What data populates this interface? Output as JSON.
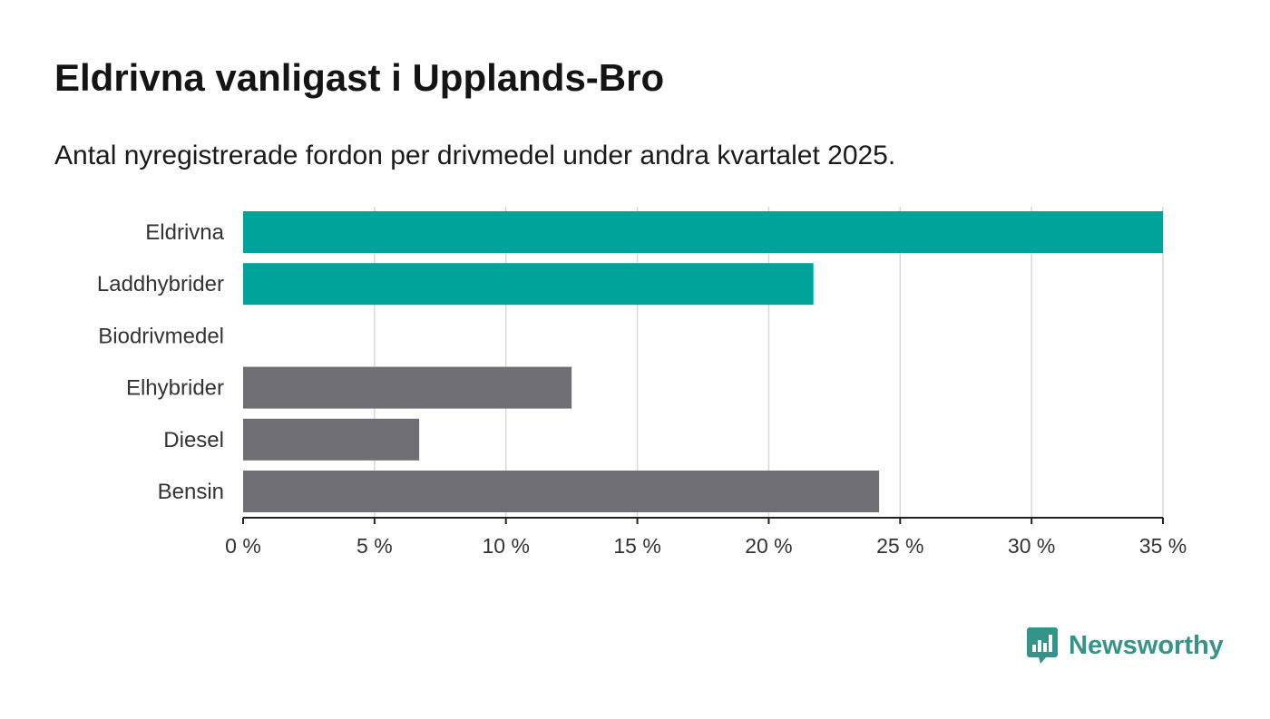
{
  "title": "Eldrivna vanligast i Upplands-Bro",
  "subtitle": "Antal nyregistrerade fordon per drivmedel under andra kvartalet 2025.",
  "brand": {
    "name": "Newsworthy",
    "icon": "newsworthy-logo-icon",
    "color": "#36938a"
  },
  "chart_data": {
    "type": "bar",
    "orientation": "horizontal",
    "categories": [
      "Eldrivna",
      "Laddhybrider",
      "Biodrivmedel",
      "Elhybrider",
      "Diesel",
      "Bensin"
    ],
    "values": [
      35.0,
      21.7,
      0,
      12.5,
      6.7,
      24.2
    ],
    "colors": [
      "#00a39a",
      "#00a39a",
      "#6f6e75",
      "#6f6e75",
      "#6f6e75",
      "#6f6e75"
    ],
    "xlim": [
      0,
      35
    ],
    "xticks": [
      0,
      5,
      10,
      15,
      20,
      25,
      30,
      35
    ],
    "xtick_labels": [
      "0 %",
      "5 %",
      "10 %",
      "15 %",
      "20 %",
      "25 %",
      "30 %",
      "35 %"
    ],
    "grid": true,
    "xlabel": "",
    "ylabel": ""
  }
}
